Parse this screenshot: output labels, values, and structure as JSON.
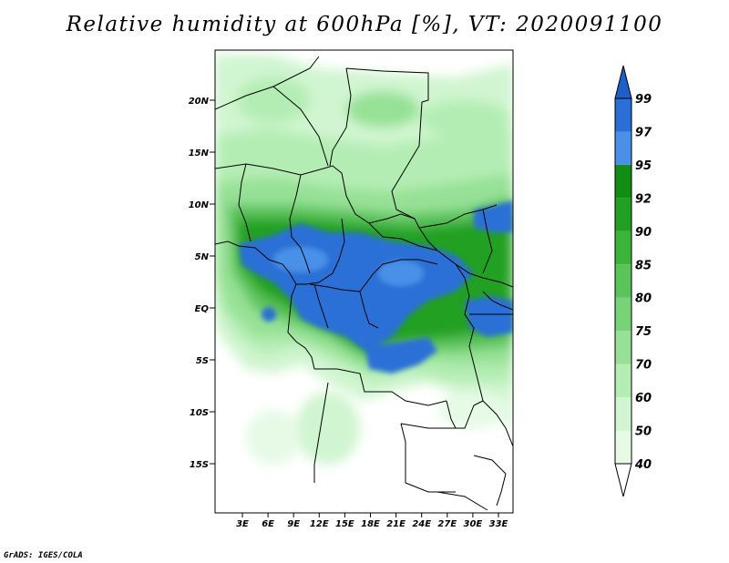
{
  "title": "Relative humidity at 600hPa [%], VT: 2020091100",
  "credit": "GrADS: IGES/COLA",
  "map": {
    "lat_labels": [
      "20N",
      "15N",
      "10N",
      "5N",
      "EQ",
      "5S",
      "10S",
      "15S"
    ],
    "lon_labels": [
      "3E",
      "6E",
      "9E",
      "12E",
      "15E",
      "18E",
      "21E",
      "24E",
      "27E",
      "30E",
      "33E"
    ]
  },
  "colorbar": {
    "levels": [
      "40",
      "50",
      "60",
      "70",
      "75",
      "80",
      "85",
      "90",
      "92",
      "95",
      "97",
      "99"
    ],
    "colors": [
      "#ffffff",
      "#e6fae6",
      "#d0f5d0",
      "#b4edb4",
      "#96e196",
      "#78d278",
      "#5ac35a",
      "#3cb43c",
      "#23a023",
      "#128c12",
      "#4a90e8",
      "#2a6fd6",
      "#1e5fc8"
    ]
  }
}
